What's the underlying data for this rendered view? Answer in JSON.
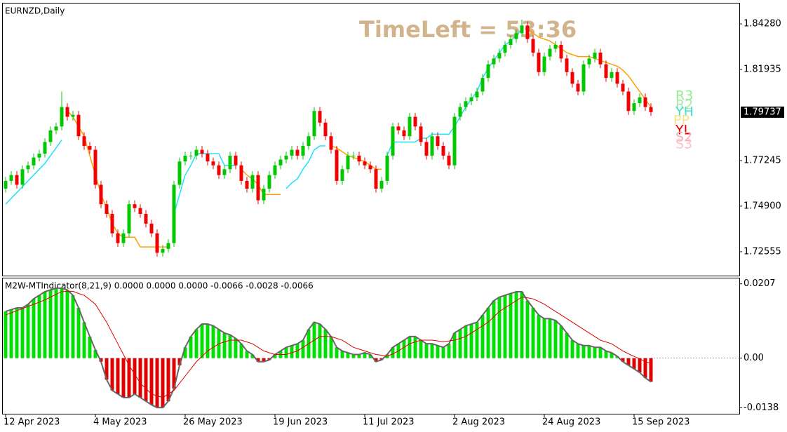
{
  "chart_data": [
    {
      "type": "candlestick",
      "title": "EURNZD,Daily",
      "annotation": "TimeLeft = 53:36",
      "pivot_labels": [
        "R3",
        "R2",
        "YH",
        "PP",
        "YL",
        "S2",
        "S3"
      ],
      "categories": [
        "12 Apr 2023",
        null,
        null,
        null,
        null,
        null,
        null,
        null,
        null,
        null,
        null,
        null,
        null,
        null,
        null,
        null,
        "4 May 2023",
        null,
        null,
        null,
        null,
        null,
        null,
        null,
        null,
        null,
        null,
        null,
        null,
        null,
        null,
        null,
        "26 May 2023",
        null,
        null,
        null,
        null,
        null,
        null,
        null,
        null,
        null,
        null,
        null,
        null,
        null,
        null,
        null,
        "19 Jun 2023",
        null,
        null,
        null,
        null,
        null,
        null,
        null,
        null,
        null,
        null,
        null,
        null,
        null,
        null,
        null,
        "11 Jul 2023",
        null,
        null,
        null,
        null,
        null,
        null,
        null,
        null,
        null,
        null,
        null,
        null,
        null,
        null,
        null,
        "2 Aug 2023",
        null,
        null,
        null,
        null,
        null,
        null,
        null,
        null,
        null,
        null,
        null,
        null,
        null,
        null,
        null,
        "24 Aug 2023",
        null,
        null,
        null,
        null,
        null,
        null,
        null,
        null,
        null,
        null,
        null,
        null,
        null,
        null,
        null,
        "15 Sep 2023",
        null,
        null,
        null
      ],
      "open": [
        1.758,
        1.762,
        1.765,
        1.76,
        1.768,
        1.77,
        1.774,
        1.776,
        1.782,
        1.788,
        1.79,
        1.8,
        1.795,
        1.796,
        1.785,
        1.78,
        1.778,
        1.76,
        1.75,
        1.745,
        1.735,
        1.73,
        1.735,
        1.75,
        1.748,
        1.745,
        1.74,
        1.735,
        1.725,
        1.727,
        1.73,
        1.76,
        1.772,
        1.775,
        1.775,
        1.778,
        1.776,
        1.772,
        1.77,
        1.765,
        1.768,
        1.775,
        1.77,
        1.762,
        1.758,
        1.765,
        1.752,
        1.758,
        1.765,
        1.77,
        1.773,
        1.775,
        1.778,
        1.775,
        1.78,
        1.785,
        1.798,
        1.792,
        1.785,
        1.778,
        1.762,
        1.768,
        1.775,
        1.775,
        1.772,
        1.77,
        1.768,
        1.758,
        1.762,
        1.775,
        1.79,
        1.788,
        1.785,
        1.795,
        1.79,
        1.782,
        1.775,
        1.785,
        1.78,
        1.775,
        1.77,
        1.795,
        1.8,
        1.803,
        1.805,
        1.808,
        1.815,
        1.822,
        1.825,
        1.828,
        1.832,
        1.835,
        1.838,
        1.842,
        1.835,
        1.828,
        1.818,
        1.826,
        1.83,
        1.832,
        1.825,
        1.818,
        1.812,
        1.808,
        1.822,
        1.825,
        1.828,
        1.822,
        1.815,
        1.818,
        1.812,
        1.808,
        1.798,
        1.802,
        1.805,
        1.8
      ],
      "high": [
        1.764,
        1.767,
        1.767,
        1.77,
        1.772,
        1.776,
        1.778,
        1.784,
        1.79,
        1.792,
        1.808,
        1.802,
        1.798,
        1.798,
        1.787,
        1.782,
        1.78,
        1.762,
        1.752,
        1.747,
        1.737,
        1.737,
        1.752,
        1.752,
        1.75,
        1.747,
        1.742,
        1.737,
        1.729,
        1.732,
        1.762,
        1.774,
        1.777,
        1.777,
        1.78,
        1.78,
        1.778,
        1.774,
        1.772,
        1.77,
        1.777,
        1.777,
        1.772,
        1.764,
        1.767,
        1.767,
        1.76,
        1.767,
        1.772,
        1.775,
        1.777,
        1.78,
        1.78,
        1.782,
        1.787,
        1.8,
        1.8,
        1.794,
        1.787,
        1.78,
        1.77,
        1.777,
        1.777,
        1.777,
        1.774,
        1.772,
        1.77,
        1.764,
        1.777,
        1.792,
        1.792,
        1.79,
        1.797,
        1.797,
        1.792,
        1.784,
        1.787,
        1.787,
        1.782,
        1.777,
        1.797,
        1.802,
        1.805,
        1.807,
        1.81,
        1.817,
        1.824,
        1.827,
        1.83,
        1.834,
        1.837,
        1.84,
        1.845,
        1.844,
        1.837,
        1.83,
        1.828,
        1.832,
        1.834,
        1.834,
        1.827,
        1.82,
        1.814,
        1.824,
        1.827,
        1.83,
        1.83,
        1.824,
        1.82,
        1.82,
        1.814,
        1.81,
        1.804,
        1.807,
        1.807,
        1.802
      ],
      "low": [
        1.756,
        1.76,
        1.758,
        1.758,
        1.766,
        1.768,
        1.772,
        1.774,
        1.78,
        1.786,
        1.788,
        1.793,
        1.793,
        1.783,
        1.778,
        1.776,
        1.758,
        1.748,
        1.743,
        1.733,
        1.728,
        1.728,
        1.733,
        1.746,
        1.743,
        1.738,
        1.733,
        1.723,
        1.723,
        1.725,
        1.728,
        1.758,
        1.77,
        1.773,
        1.773,
        1.774,
        1.77,
        1.768,
        1.763,
        1.763,
        1.766,
        1.768,
        1.76,
        1.756,
        1.756,
        1.75,
        1.75,
        1.756,
        1.763,
        1.768,
        1.771,
        1.773,
        1.773,
        1.773,
        1.778,
        1.783,
        1.79,
        1.783,
        1.776,
        1.76,
        1.76,
        1.766,
        1.773,
        1.77,
        1.768,
        1.766,
        1.756,
        1.756,
        1.76,
        1.773,
        1.786,
        1.783,
        1.783,
        1.788,
        1.78,
        1.773,
        1.773,
        1.778,
        1.773,
        1.768,
        1.768,
        1.793,
        1.798,
        1.801,
        1.803,
        1.806,
        1.813,
        1.82,
        1.823,
        1.826,
        1.83,
        1.833,
        1.836,
        1.833,
        1.826,
        1.816,
        1.816,
        1.824,
        1.828,
        1.823,
        1.816,
        1.81,
        1.806,
        1.806,
        1.82,
        1.823,
        1.82,
        1.813,
        1.813,
        1.81,
        1.806,
        1.796,
        1.796,
        1.8,
        1.798,
        1.7954
      ],
      "close": [
        1.762,
        1.765,
        1.76,
        1.768,
        1.77,
        1.774,
        1.776,
        1.782,
        1.788,
        1.79,
        1.8,
        1.795,
        1.796,
        1.785,
        1.78,
        1.778,
        1.76,
        1.75,
        1.745,
        1.735,
        1.73,
        1.735,
        1.75,
        1.748,
        1.745,
        1.74,
        1.735,
        1.725,
        1.727,
        1.73,
        1.76,
        1.772,
        1.775,
        1.775,
        1.778,
        1.776,
        1.772,
        1.77,
        1.765,
        1.768,
        1.775,
        1.77,
        1.762,
        1.758,
        1.765,
        1.752,
        1.758,
        1.765,
        1.77,
        1.773,
        1.775,
        1.778,
        1.775,
        1.78,
        1.785,
        1.798,
        1.792,
        1.785,
        1.778,
        1.762,
        1.768,
        1.775,
        1.775,
        1.772,
        1.77,
        1.768,
        1.758,
        1.762,
        1.775,
        1.79,
        1.788,
        1.785,
        1.795,
        1.79,
        1.782,
        1.775,
        1.785,
        1.78,
        1.775,
        1.77,
        1.795,
        1.8,
        1.803,
        1.805,
        1.808,
        1.815,
        1.822,
        1.825,
        1.828,
        1.832,
        1.835,
        1.838,
        1.842,
        1.835,
        1.828,
        1.818,
        1.826,
        1.83,
        1.832,
        1.825,
        1.818,
        1.812,
        1.808,
        1.822,
        1.825,
        1.828,
        1.822,
        1.815,
        1.818,
        1.812,
        1.808,
        1.798,
        1.802,
        1.805,
        1.8,
        1.7974
      ],
      "up_color": "#00c800",
      "down_color": "#f00000",
      "lines": [
        {
          "color": "#ffa000",
          "values": [
            null,
            null,
            null,
            null,
            null,
            null,
            null,
            null,
            null,
            null,
            null,
            1.798,
            1.795,
            1.79,
            1.785,
            1.775,
            1.765,
            1.755,
            1.748,
            1.74,
            1.735,
            1.733,
            1.733,
            1.733,
            1.728,
            1.728,
            1.728,
            1.728,
            1.728,
            1.728,
            null,
            null,
            null,
            null,
            null,
            null,
            null,
            null,
            null,
            null,
            null,
            null,
            1.768,
            1.765,
            1.763,
            1.76,
            1.755,
            1.755,
            1.755,
            1.755,
            null,
            null,
            null,
            null,
            null,
            null,
            null,
            null,
            1.78,
            1.779,
            1.777,
            1.775,
            1.774,
            1.773,
            1.772,
            1.77,
            1.768,
            1.768,
            null,
            null,
            null,
            null,
            null,
            null,
            null,
            null,
            null,
            null,
            null,
            null,
            null,
            null,
            null,
            null,
            null,
            null,
            null,
            null,
            null,
            null,
            null,
            null,
            null,
            1.84,
            1.838,
            1.836,
            1.835,
            1.834,
            1.832,
            1.83,
            1.828,
            1.827,
            1.826,
            1.826,
            1.826,
            1.825,
            1.824,
            1.823,
            1.822,
            1.821,
            1.819,
            1.816,
            1.812,
            1.808,
            1.804,
            1.8
          ]
        },
        {
          "color": "#20e0ff",
          "values": [
            1.75,
            1.753,
            1.756,
            1.759,
            1.762,
            1.765,
            1.768,
            1.771,
            1.775,
            1.779,
            1.783,
            null,
            null,
            null,
            null,
            null,
            null,
            null,
            null,
            null,
            null,
            null,
            null,
            null,
            null,
            null,
            null,
            null,
            null,
            null,
            1.745,
            1.755,
            1.765,
            1.77,
            1.776,
            1.776,
            1.776,
            1.776,
            1.776,
            1.77,
            1.77,
            1.77,
            null,
            null,
            null,
            null,
            null,
            null,
            null,
            null,
            1.758,
            1.761,
            1.763,
            1.768,
            1.772,
            1.778,
            1.78,
            1.78,
            null,
            null,
            null,
            null,
            null,
            null,
            null,
            null,
            null,
            null,
            1.775,
            1.782,
            1.782,
            1.782,
            1.782,
            1.782,
            1.784,
            1.784,
            1.786,
            1.786,
            1.786,
            1.786,
            1.79,
            1.795,
            1.8,
            1.804,
            1.808,
            1.815,
            1.82,
            1.824,
            1.828,
            1.832,
            1.834,
            1.837,
            1.84,
            null,
            null,
            null,
            null,
            null,
            null,
            null,
            null,
            null,
            null,
            null,
            null,
            null,
            null,
            null,
            null,
            null,
            null,
            null,
            null,
            null,
            null,
            null
          ]
        }
      ],
      "current_price": 1.79737,
      "ylim": [
        1.7136,
        1.8533
      ],
      "yticks": [
        {
          "value": 1.8428,
          "label": "1.84280"
        },
        1.81935,
        1.77245,
        {
          "value": 1.749,
          "label": "1.74900"
        },
        1.72555
      ]
    },
    {
      "type": "bar",
      "title": "M2W-MTIndicator(8,21,9) 0.0000 0.0000 0.0000 -0.0066 -0.0028 -0.0066",
      "values": [
        0.013,
        0.0135,
        0.014,
        0.014,
        0.015,
        0.0165,
        0.0175,
        0.0185,
        0.019,
        0.0195,
        0.0195,
        0.019,
        0.0175,
        0.014,
        0.01,
        0.006,
        0.0023,
        -0.001,
        -0.006,
        -0.009,
        -0.01,
        -0.011,
        -0.011,
        -0.01,
        -0.011,
        -0.012,
        -0.013,
        -0.0138,
        -0.0138,
        -0.012,
        -0.0085,
        -0.002,
        0.003,
        0.006,
        0.008,
        0.0095,
        0.0095,
        0.009,
        0.008,
        0.007,
        0.0065,
        0.0055,
        0.004,
        0.002,
        0.001,
        -0.001,
        -0.001,
        -0.0005,
        0.001,
        0.002,
        0.003,
        0.0035,
        0.004,
        0.005,
        0.008,
        0.01,
        0.0095,
        0.008,
        0.006,
        0.003,
        0.002,
        0.0015,
        0.001,
        0.001,
        0.0015,
        0.001,
        -0.001,
        -0.0005,
        0.001,
        0.003,
        0.004,
        0.005,
        0.006,
        0.006,
        0.005,
        0.004,
        0.004,
        0.0035,
        0.003,
        0.004,
        0.007,
        0.008,
        0.009,
        0.0095,
        0.01,
        0.012,
        0.014,
        0.016,
        0.017,
        0.0175,
        0.018,
        0.0185,
        0.0185,
        0.016,
        0.014,
        0.012,
        0.011,
        0.011,
        0.0105,
        0.009,
        0.007,
        0.005,
        0.004,
        0.0035,
        0.0035,
        0.003,
        0.003,
        0.002,
        0.0015,
        0.0005,
        -0.001,
        -0.002,
        -0.003,
        -0.004,
        -0.0055,
        -0.0066
      ],
      "up_color": "#00e000",
      "down_color": "#e00000",
      "signal": {
        "color": "#e00000",
        "values": [
          0.012,
          0.0126,
          0.0132,
          0.0138,
          0.0144,
          0.015,
          0.0156,
          0.0162,
          0.017,
          0.0178,
          0.0185,
          0.0186,
          0.0186,
          0.018,
          0.0175,
          0.0163,
          0.015,
          0.0125,
          0.01,
          0.007,
          0.004,
          0.001,
          -0.002,
          -0.0045,
          -0.007,
          -0.0085,
          -0.01,
          -0.0105,
          -0.011,
          -0.01,
          -0.009,
          -0.007,
          -0.005,
          -0.003,
          -0.001,
          0.0005,
          0.002,
          0.003,
          0.004,
          0.0045,
          0.005,
          0.005,
          0.005,
          0.0045,
          0.004,
          0.003,
          0.002,
          0.0015,
          0.001,
          0.001,
          0.001,
          0.0015,
          0.002,
          0.003,
          0.004,
          0.005,
          0.006,
          0.006,
          0.006,
          0.0055,
          0.005,
          0.004,
          0.003,
          0.0025,
          0.002,
          0.0015,
          0.001,
          0.0008,
          0.0005,
          0.0012,
          0.002,
          0.003,
          0.004,
          0.0045,
          0.005,
          0.005,
          0.005,
          0.0048,
          0.0045,
          0.0048,
          0.005,
          0.0055,
          0.006,
          0.007,
          0.008,
          0.009,
          0.01,
          0.0115,
          0.013,
          0.014,
          0.015,
          0.016,
          0.017,
          0.0168,
          0.0165,
          0.0158,
          0.015,
          0.014,
          0.013,
          0.012,
          0.011,
          0.01,
          0.009,
          0.008,
          0.007,
          0.006,
          0.005,
          0.0045,
          0.004,
          0.003,
          0.002,
          0.0012,
          0.0005,
          -0.0002,
          -0.001,
          -0.0015
        ]
      },
      "ylim": [
        -0.0155,
        0.0222
      ],
      "yticks": [
        0.0207,
        {
          "value": 0,
          "label": "0.00"
        },
        -0.0138
      ]
    }
  ]
}
